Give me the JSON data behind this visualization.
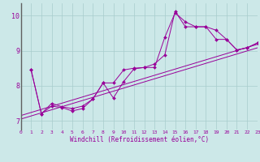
{
  "xlabel": "Windchill (Refroidissement éolien,°C)",
  "background_color": "#cce8e8",
  "line_color": "#990099",
  "xlim": [
    0,
    23
  ],
  "ylim": [
    6.75,
    10.35
  ],
  "yticks": [
    7,
    8,
    9,
    10
  ],
  "xticks": [
    0,
    1,
    2,
    3,
    4,
    5,
    6,
    7,
    8,
    9,
    10,
    11,
    12,
    13,
    14,
    15,
    16,
    17,
    18,
    19,
    20,
    21,
    22,
    23
  ],
  "series_data": [
    {
      "x": [
        1,
        2,
        3,
        4,
        5,
        6,
        7,
        8,
        9,
        10,
        11,
        12,
        13,
        14,
        15,
        16,
        17,
        18,
        19,
        20,
        21,
        22,
        23
      ],
      "y": [
        8.45,
        7.2,
        7.5,
        7.4,
        7.35,
        7.42,
        7.62,
        8.08,
        8.08,
        8.45,
        8.5,
        8.52,
        8.52,
        9.38,
        10.08,
        9.82,
        9.68,
        9.68,
        9.58,
        9.32,
        9.02,
        9.08,
        9.22
      ],
      "marker": true
    },
    {
      "x": [
        1,
        2,
        3,
        4,
        5,
        6,
        7,
        8,
        9,
        10,
        11,
        12,
        13,
        14,
        15,
        16,
        17,
        18,
        19,
        20,
        21,
        22,
        23
      ],
      "y": [
        8.45,
        7.2,
        7.42,
        7.38,
        7.28,
        7.35,
        7.62,
        8.08,
        7.65,
        8.12,
        8.48,
        8.52,
        8.62,
        8.88,
        10.12,
        9.68,
        9.68,
        9.68,
        9.32,
        9.32,
        9.02,
        9.08,
        9.22
      ],
      "marker": true
    },
    {
      "x": [
        0,
        23
      ],
      "y": [
        7.05,
        9.08
      ],
      "marker": false
    },
    {
      "x": [
        0,
        23
      ],
      "y": [
        7.15,
        9.18
      ],
      "marker": false
    }
  ]
}
